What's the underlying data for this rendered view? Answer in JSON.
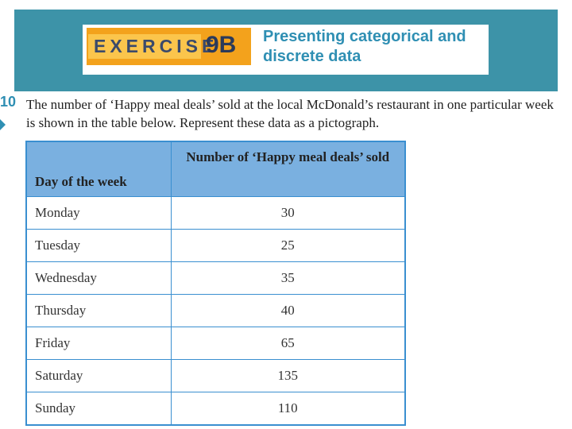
{
  "header": {
    "exercise_word": "EXERCISE",
    "exercise_number": "9B",
    "section_title": "Presenting categorical and discrete data"
  },
  "question": {
    "number": "10",
    "text": "The number of ‘Happy meal deals’ sold at the local McDonald’s restaurant in one particular week is shown in the table below. Represent these data as a pictograph."
  },
  "table": {
    "columns": [
      "Day of the week",
      "Number of ‘Happy meal deals’ sold"
    ],
    "rows": [
      {
        "day": "Monday",
        "value": "30"
      },
      {
        "day": "Tuesday",
        "value": "25"
      },
      {
        "day": "Wednesday",
        "value": "35"
      },
      {
        "day": "Thursday",
        "value": "40"
      },
      {
        "day": "Friday",
        "value": "65"
      },
      {
        "day": "Saturday",
        "value": "135"
      },
      {
        "day": "Sunday",
        "value": "110"
      }
    ]
  },
  "colors": {
    "header_band": "#3d93a8",
    "badge_orange": "#f3a21c",
    "title_blue": "#2f8fb3",
    "table_header": "#7ab0e0",
    "table_border": "#3a8fd0"
  }
}
